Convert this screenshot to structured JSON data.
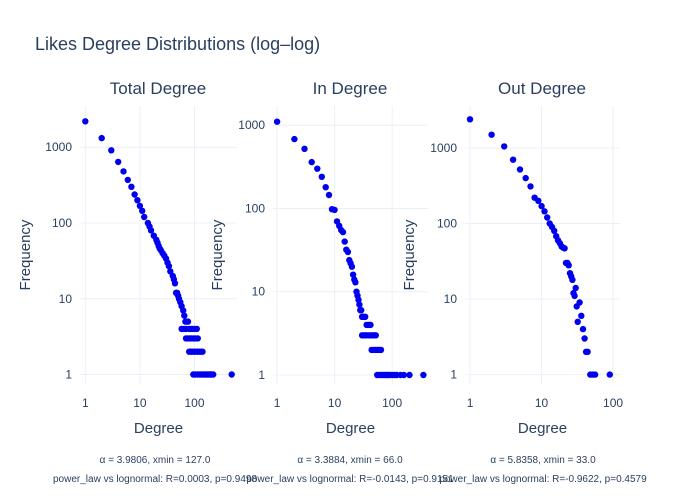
{
  "figure": {
    "title": "Likes Degree Distributions (log–log)",
    "marker_color": "#0000ee",
    "grid_color": "#ebf0f8",
    "text_color": "#2a3f5f"
  },
  "chart_data": [
    {
      "type": "scatter",
      "title": "Total Degree",
      "xlabel": "Degree",
      "ylabel": "Frequency",
      "x_scale": "log",
      "y_scale": "log",
      "x_ticks": [
        "1",
        "10",
        "100"
      ],
      "y_ticks": [
        "1",
        "10",
        "100",
        "1000"
      ],
      "xlim": [
        0.8,
        600
      ],
      "ylim": [
        0.75,
        3500
      ],
      "grid": true,
      "fit_text": "α = 3.9806, xmin = 127.0",
      "compare_text": "power_law vs lognormal: R=0.0003, p=0.9498",
      "points": [
        [
          1,
          2200
        ],
        [
          2,
          1320
        ],
        [
          3,
          910
        ],
        [
          4,
          640
        ],
        [
          5,
          480
        ],
        [
          6,
          370
        ],
        [
          7,
          300
        ],
        [
          8,
          238
        ],
        [
          9,
          200
        ],
        [
          10,
          168
        ],
        [
          11,
          145
        ],
        [
          12,
          120
        ],
        [
          14,
          100
        ],
        [
          15,
          90
        ],
        [
          16,
          80
        ],
        [
          18,
          68
        ],
        [
          20,
          60
        ],
        [
          21,
          55
        ],
        [
          22,
          50
        ],
        [
          23,
          46
        ],
        [
          24,
          44
        ],
        [
          26,
          40
        ],
        [
          28,
          37
        ],
        [
          30,
          34
        ],
        [
          32,
          30
        ],
        [
          34,
          27
        ],
        [
          36,
          23
        ],
        [
          40,
          20
        ],
        [
          42,
          18
        ],
        [
          44,
          16
        ],
        [
          46,
          12
        ],
        [
          48,
          12
        ],
        [
          50,
          11
        ],
        [
          52,
          10
        ],
        [
          55,
          9
        ],
        [
          58,
          8
        ],
        [
          62,
          7
        ],
        [
          65,
          6
        ],
        [
          68,
          5
        ],
        [
          72,
          5
        ],
        [
          76,
          5
        ],
        [
          80,
          4
        ],
        [
          58,
          4
        ],
        [
          64,
          4
        ],
        [
          70,
          4
        ],
        [
          85,
          4
        ],
        [
          92,
          4
        ],
        [
          100,
          4
        ],
        [
          110,
          4
        ],
        [
          70,
          3
        ],
        [
          76,
          3
        ],
        [
          82,
          3
        ],
        [
          88,
          3
        ],
        [
          95,
          3
        ],
        [
          105,
          3
        ],
        [
          115,
          3
        ],
        [
          80,
          2
        ],
        [
          86,
          2
        ],
        [
          92,
          2
        ],
        [
          100,
          2
        ],
        [
          110,
          2
        ],
        [
          120,
          2
        ],
        [
          130,
          2
        ],
        [
          140,
          2
        ],
        [
          95,
          1
        ],
        [
          105,
          1
        ],
        [
          115,
          1
        ],
        [
          125,
          1
        ],
        [
          135,
          1
        ],
        [
          145,
          1
        ],
        [
          155,
          1
        ],
        [
          165,
          1
        ],
        [
          175,
          1
        ],
        [
          185,
          1
        ],
        [
          195,
          1
        ],
        [
          205,
          1
        ],
        [
          220,
          1
        ],
        [
          480,
          1
        ]
      ]
    },
    {
      "type": "scatter",
      "title": "In Degree",
      "xlabel": "Degree",
      "ylabel": "Frequency",
      "x_scale": "log",
      "y_scale": "log",
      "x_ticks": [
        "1",
        "10",
        "100"
      ],
      "y_ticks": [
        "1",
        "10",
        "100",
        "1000"
      ],
      "xlim": [
        0.85,
        420
      ],
      "ylim": [
        0.78,
        1700
      ],
      "grid": true,
      "fit_text": "α = 3.3884, xmin = 66.0",
      "compare_text": "power_law vs lognormal: R=-0.0143, p=0.9151",
      "points": [
        [
          1,
          1100
        ],
        [
          2,
          680
        ],
        [
          3,
          520
        ],
        [
          4,
          360
        ],
        [
          5,
          300
        ],
        [
          6,
          240
        ],
        [
          7,
          180
        ],
        [
          8,
          145
        ],
        [
          9,
          98
        ],
        [
          10,
          96
        ],
        [
          11,
          70
        ],
        [
          12,
          62
        ],
        [
          13,
          55
        ],
        [
          14,
          52
        ],
        [
          15,
          40
        ],
        [
          16,
          32
        ],
        [
          17,
          30
        ],
        [
          18,
          24
        ],
        [
          19,
          22
        ],
        [
          20,
          20
        ],
        [
          21,
          16
        ],
        [
          22,
          14
        ],
        [
          23,
          13
        ],
        [
          24,
          10
        ],
        [
          25,
          9
        ],
        [
          26,
          8
        ],
        [
          27,
          7
        ],
        [
          28,
          6
        ],
        [
          29,
          6
        ],
        [
          30,
          5
        ],
        [
          32,
          5
        ],
        [
          34,
          5
        ],
        [
          36,
          4
        ],
        [
          38,
          4
        ],
        [
          40,
          4
        ],
        [
          42,
          4
        ],
        [
          30,
          3
        ],
        [
          33,
          3
        ],
        [
          36,
          3
        ],
        [
          40,
          3
        ],
        [
          44,
          3
        ],
        [
          48,
          3
        ],
        [
          52,
          3
        ],
        [
          44,
          2
        ],
        [
          48,
          2
        ],
        [
          52,
          2
        ],
        [
          56,
          2
        ],
        [
          60,
          2
        ],
        [
          64,
          2
        ],
        [
          55,
          1
        ],
        [
          60,
          1
        ],
        [
          65,
          1
        ],
        [
          70,
          1
        ],
        [
          75,
          1
        ],
        [
          80,
          1
        ],
        [
          85,
          1
        ],
        [
          90,
          1
        ],
        [
          100,
          1
        ],
        [
          110,
          1
        ],
        [
          120,
          1
        ],
        [
          140,
          1
        ],
        [
          160,
          1
        ],
        [
          200,
          1
        ],
        [
          350,
          1
        ]
      ]
    },
    {
      "type": "scatter",
      "title": "Out Degree",
      "xlabel": "Degree",
      "ylabel": "Frequency",
      "x_scale": "log",
      "y_scale": "log",
      "x_ticks": [
        "1",
        "10",
        "100"
      ],
      "y_ticks": [
        "1",
        "10",
        "100",
        "1000"
      ],
      "xlim": [
        0.85,
        125
      ],
      "ylim": [
        0.75,
        3600
      ],
      "grid": true,
      "fit_text": "α = 5.8358, xmin = 33.0",
      "compare_text": "power_law vs lognormal: R=-0.9622, p=0.4579",
      "points": [
        [
          1,
          2400
        ],
        [
          2,
          1500
        ],
        [
          3,
          1050
        ],
        [
          4,
          700
        ],
        [
          5,
          520
        ],
        [
          6,
          400
        ],
        [
          7,
          310
        ],
        [
          8,
          220
        ],
        [
          9,
          200
        ],
        [
          10,
          170
        ],
        [
          11,
          145
        ],
        [
          12,
          120
        ],
        [
          13,
          100
        ],
        [
          14,
          90
        ],
        [
          15,
          80
        ],
        [
          16,
          68
        ],
        [
          17,
          60
        ],
        [
          18,
          55
        ],
        [
          19,
          50
        ],
        [
          20,
          48
        ],
        [
          21,
          47
        ],
        [
          22,
          30
        ],
        [
          23,
          30
        ],
        [
          24,
          28
        ],
        [
          25,
          22
        ],
        [
          26,
          20
        ],
        [
          27,
          18
        ],
        [
          28,
          12
        ],
        [
          29,
          11
        ],
        [
          30,
          14
        ],
        [
          31,
          8
        ],
        [
          32,
          5
        ],
        [
          34,
          9
        ],
        [
          36,
          6
        ],
        [
          38,
          4
        ],
        [
          40,
          3
        ],
        [
          42,
          2
        ],
        [
          44,
          2
        ],
        [
          48,
          1
        ],
        [
          52,
          1
        ],
        [
          56,
          1
        ],
        [
          90,
          1
        ]
      ]
    }
  ]
}
